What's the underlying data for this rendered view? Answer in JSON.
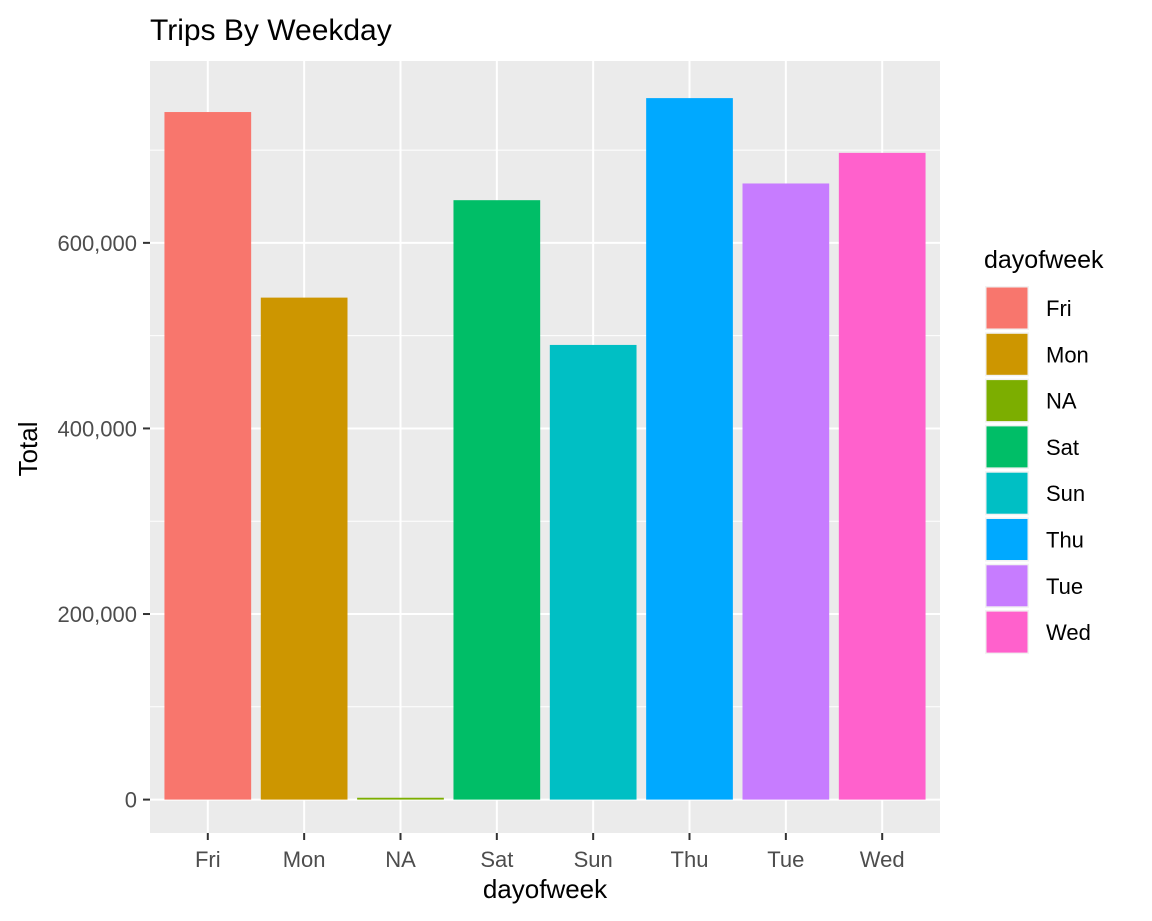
{
  "chart_data": {
    "type": "bar",
    "title": "Trips By Weekday",
    "xlabel": "dayofweek",
    "ylabel": "Total",
    "categories": [
      "Fri",
      "Mon",
      "NA",
      "Sat",
      "Sun",
      "Thu",
      "Tue",
      "Wed"
    ],
    "values": [
      741000,
      541000,
      2000,
      646000,
      490000,
      756000,
      664000,
      697000
    ],
    "ylim": [
      -36000,
      796000
    ],
    "yticks": [
      0,
      200000,
      400000,
      600000
    ],
    "ytick_labels": [
      "0",
      "200,000",
      "400,000",
      "600,000"
    ],
    "colors": [
      "#F8766D",
      "#CD9600",
      "#7CAE00",
      "#00BE67",
      "#00BFC4",
      "#00A9FF",
      "#C77CFF",
      "#FF61CC"
    ],
    "grid": true,
    "panel_background": "#EBEBEB",
    "legend": {
      "title": "dayofweek",
      "position": "right",
      "entries": [
        "Fri",
        "Mon",
        "NA",
        "Sat",
        "Sun",
        "Thu",
        "Tue",
        "Wed"
      ]
    }
  }
}
